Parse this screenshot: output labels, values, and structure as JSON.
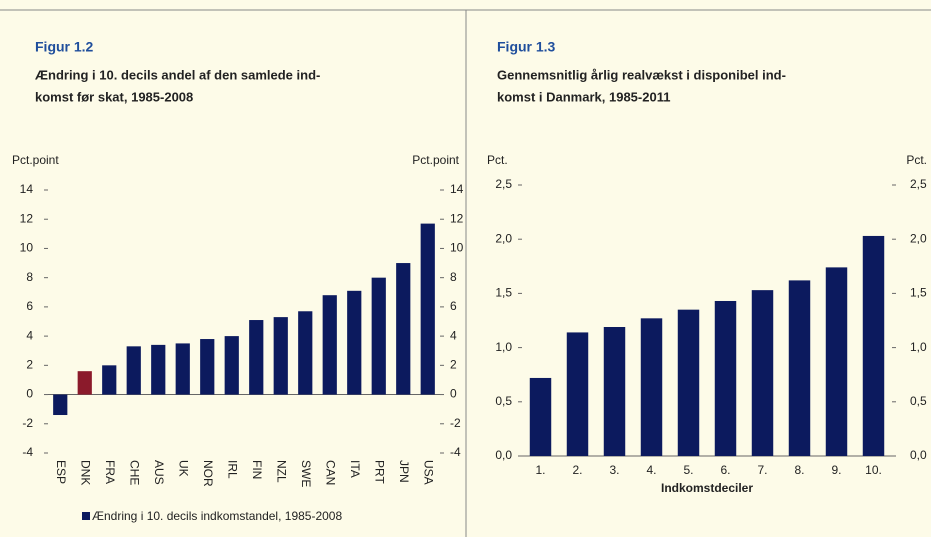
{
  "chart_data": [
    {
      "type": "bar",
      "figure": "Figur 1.2",
      "title": [
        "Ændring i 10. decils andel af den samlede ind-",
        "komst før skat, 1985-2008"
      ],
      "ylabel": "Pct.point",
      "y2label": "Pct.point",
      "categories": [
        "ESP",
        "DNK",
        "FRA",
        "CHE",
        "AUS",
        "UK",
        "NOR",
        "IRL",
        "FIN",
        "NZL",
        "SWE",
        "CAN",
        "ITA",
        "PRT",
        "JPN",
        "USA"
      ],
      "series": [
        {
          "name": "Ændring i 10. decils indkomstandel, 1985-2008",
          "color": "#0c1a5e",
          "values": [
            -1.4,
            1.6,
            2.0,
            3.3,
            3.4,
            3.5,
            3.8,
            4.0,
            5.1,
            5.3,
            5.7,
            6.8,
            7.1,
            8.0,
            9.0,
            11.7
          ],
          "colors": [
            "#0c1a5e",
            "#8b1a2b",
            "#0c1a5e",
            "#0c1a5e",
            "#0c1a5e",
            "#0c1a5e",
            "#0c1a5e",
            "#0c1a5e",
            "#0c1a5e",
            "#0c1a5e",
            "#0c1a5e",
            "#0c1a5e",
            "#0c1a5e",
            "#0c1a5e",
            "#0c1a5e",
            "#0c1a5e"
          ]
        }
      ],
      "ylim": [
        -4,
        14
      ],
      "yticks": [
        14,
        12,
        10,
        8,
        6,
        4,
        2,
        0,
        -2,
        -4
      ],
      "y2lim": [
        -4,
        14
      ],
      "y2ticks": [
        14,
        12,
        10,
        8,
        6,
        4,
        2,
        0,
        -2,
        -4
      ],
      "rotate_labels": true
    },
    {
      "type": "bar",
      "figure": "Figur 1.3",
      "title": [
        "Gennemsnitlig årlig realvækst i disponibel ind-",
        "komst i Danmark, 1985-2011"
      ],
      "ylabel": "Pct.",
      "y2label": "Pct.",
      "xlabel": "Indkomstdeciler",
      "categories": [
        "1.",
        "2.",
        "3.",
        "4.",
        "5.",
        "6.",
        "7.",
        "8.",
        "9.",
        "10."
      ],
      "series": [
        {
          "color": "#0c1a5e",
          "values": [
            0.72,
            1.14,
            1.19,
            1.27,
            1.35,
            1.43,
            1.53,
            1.62,
            1.74,
            2.03
          ]
        }
      ],
      "ylim": [
        0,
        2.5
      ],
      "yticks": [
        {
          "value": 2.5,
          "label": "2,5"
        },
        {
          "value": 2.0,
          "label": "2,0"
        },
        {
          "value": 1.5,
          "label": "1,5"
        },
        {
          "value": 1.0,
          "label": "1,0"
        },
        {
          "value": 0.5,
          "label": "0,5"
        },
        {
          "value": 0,
          "label": "0,0"
        }
      ],
      "y2lim": [
        0,
        2.5
      ],
      "y2ticks": [
        {
          "value": 2.5,
          "label": "2,5"
        },
        {
          "value": 2.0,
          "label": "2,0"
        },
        {
          "value": 1.5,
          "label": "1,5"
        },
        {
          "value": 1.0,
          "label": "1,0"
        },
        {
          "value": 0.5,
          "label": "0,5"
        },
        {
          "value": 0,
          "label": "0,0"
        }
      ]
    }
  ]
}
